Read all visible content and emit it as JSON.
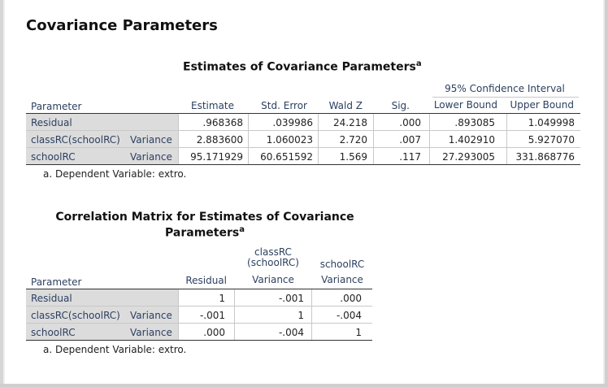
{
  "heading": "Covariance Parameters",
  "estimates_table": {
    "title": "Estimates of Covariance Parameters",
    "title_superscript": "a",
    "ci_header": "95% Confidence Interval",
    "columns": [
      "Parameter",
      "Estimate",
      "Std. Error",
      "Wald Z",
      "Sig.",
      "Lower Bound",
      "Upper Bound"
    ],
    "rows": [
      {
        "param": "Residual",
        "type": "",
        "estimate": ".968368",
        "std_error": ".039986",
        "wald_z": "24.218",
        "sig": ".000",
        "lower": ".893085",
        "upper": "1.049998"
      },
      {
        "param": "classRC(schoolRC)",
        "type": "Variance",
        "estimate": "2.883600",
        "std_error": "1.060023",
        "wald_z": "2.720",
        "sig": ".007",
        "lower": "1.402910",
        "upper": "5.927070"
      },
      {
        "param": "schoolRC",
        "type": "Variance",
        "estimate": "95.171929",
        "std_error": "60.651592",
        "wald_z": "1.569",
        "sig": ".117",
        "lower": "27.293005",
        "upper": "331.868776"
      }
    ],
    "footnote": "a. Dependent Variable: extro."
  },
  "correlation_table": {
    "title_line1": "Correlation Matrix for Estimates of Covariance",
    "title_line2": "Parameters",
    "title_superscript": "a",
    "col_param": "Parameter",
    "col_residual": "Residual",
    "col_class_line1": "classRC",
    "col_class_line2": "(schoolRC)",
    "col_class_sub": "Variance",
    "col_school_line1": "schoolRC",
    "col_school_sub": "Variance",
    "rows": [
      {
        "param": "Residual",
        "type": "",
        "residual": "1",
        "class": "-.001",
        "school": ".000"
      },
      {
        "param": "classRC(schoolRC)",
        "type": "Variance",
        "residual": "-.001",
        "class": "1",
        "school": "-.004"
      },
      {
        "param": "schoolRC",
        "type": "Variance",
        "residual": ".000",
        "class": "-.004",
        "school": "1"
      }
    ],
    "footnote": "a. Dependent Variable: extro."
  }
}
